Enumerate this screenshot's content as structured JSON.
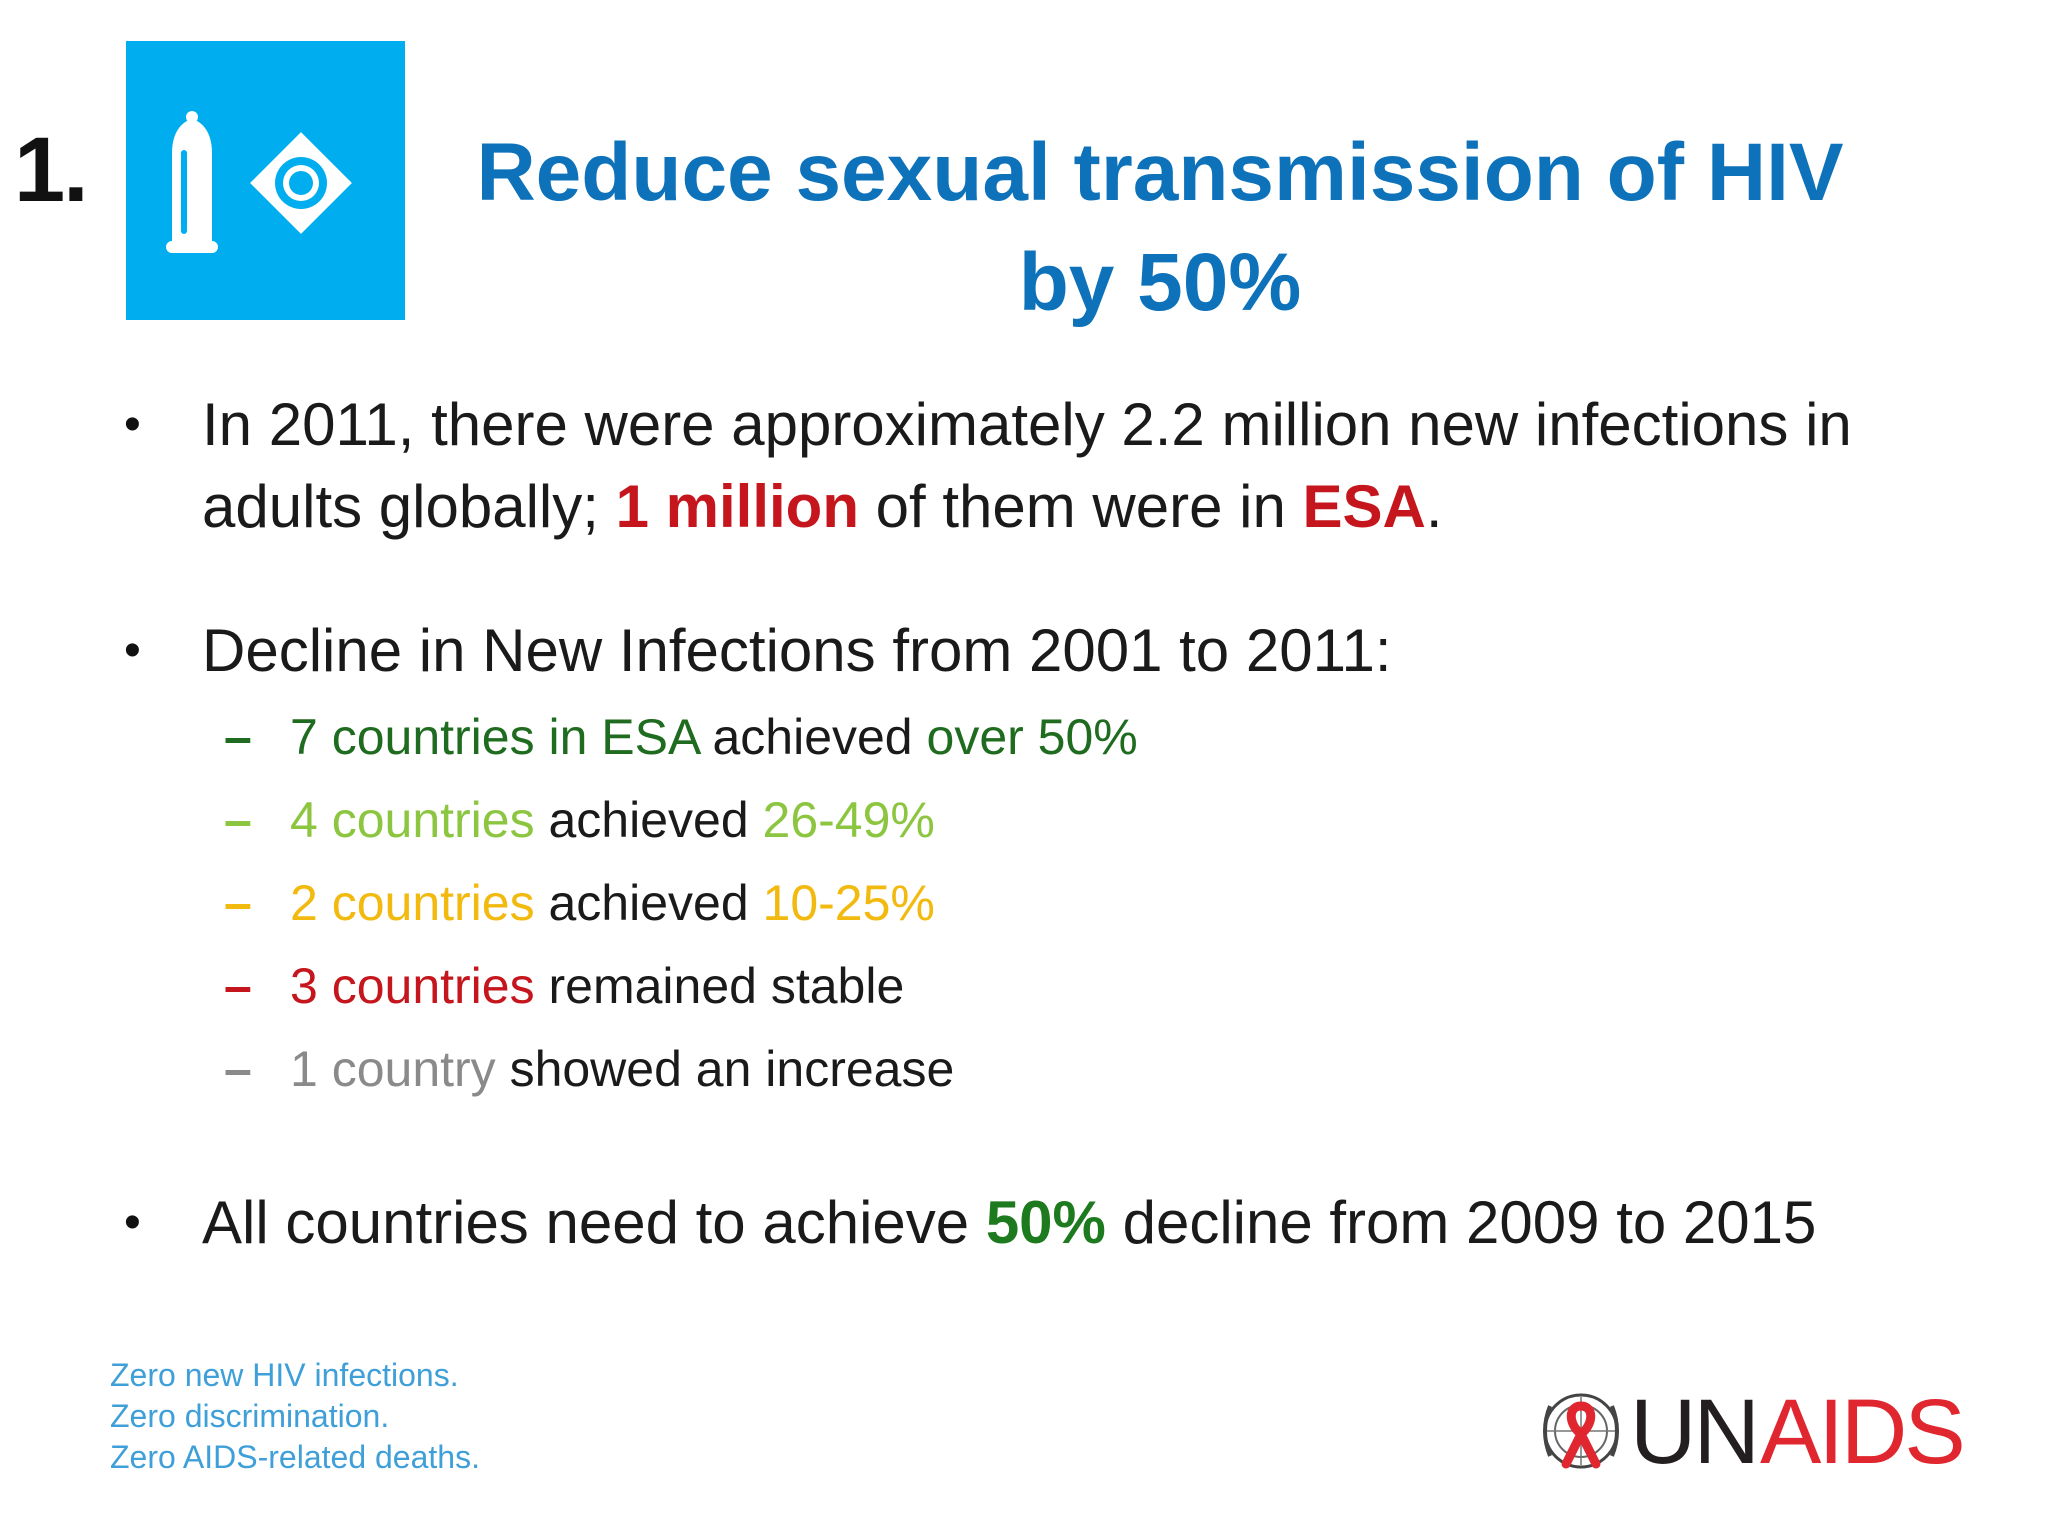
{
  "header": {
    "number": "1.",
    "icon": "condom-and-pill-icon",
    "icon_bg": "#00aeef",
    "title": "Reduce sexual transmission of HIV by 50%"
  },
  "bullets": {
    "b1": {
      "pre": "In 2011, there were approximately 2.2 million new infections in adults globally; ",
      "em1": "1 million",
      "mid": " of them were in ",
      "em2": "ESA",
      "post": "."
    },
    "b2": {
      "text": "Decline in New Infections from 2001 to 2011:",
      "items": [
        {
          "dash": "–",
          "lead": "7 countries in ESA",
          "mid": " achieved ",
          "tail": "over 50%",
          "color": "#1f6b1f"
        },
        {
          "dash": "–",
          "lead": "4 countries",
          "mid": " achieved ",
          "tail": "26-49%",
          "color": "#8cc641"
        },
        {
          "dash": "–",
          "lead": "2 countries",
          "mid": " achieved ",
          "tail": "10-25%",
          "color": "#f2b90f"
        },
        {
          "dash": "–",
          "lead": "3 countries",
          "mid": " remained stable",
          "tail": "",
          "color": "#c4161c"
        },
        {
          "dash": "–",
          "lead": "1 country",
          "mid": " showed an increase",
          "tail": "",
          "color": "#8a8a8a"
        }
      ]
    },
    "b3": {
      "pre": "All countries need to achieve ",
      "em": "50%",
      "post": " decline from 2009 to 2015"
    }
  },
  "footer": {
    "tagline": [
      "Zero new HIV infections.",
      "Zero discrimination.",
      "Zero AIDS-related deaths."
    ],
    "logo": {
      "un": "UN",
      "aids": "AIDS",
      "emblem": "un-emblem-red-ribbon-icon"
    }
  },
  "bullet_char": "•"
}
